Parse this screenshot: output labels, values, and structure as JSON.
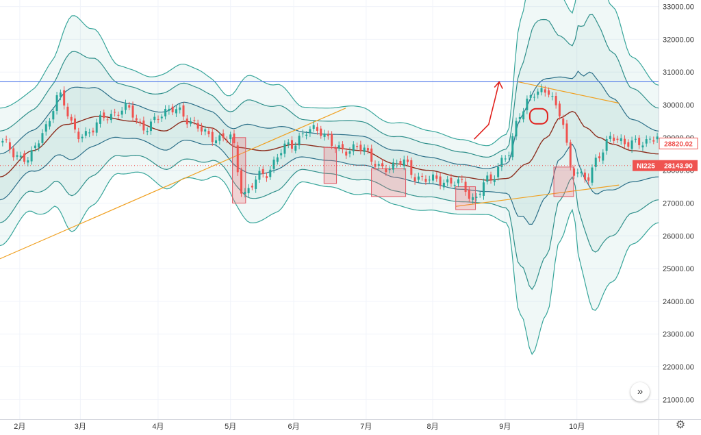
{
  "chart_data": {
    "type": "candlestick",
    "symbol": "NI225",
    "last_price": "28143.90",
    "ma_value": "28820.02",
    "ylim": [
      20400,
      33200
    ],
    "yticks": [
      "33000.00",
      "32000.00",
      "31000.00",
      "30000.00",
      "29000.00",
      "28000.00",
      "27000.00",
      "26000.00",
      "25000.00",
      "24000.00",
      "23000.00",
      "22000.00",
      "21000.00"
    ],
    "ytick_values": [
      33000,
      32000,
      31000,
      30000,
      29000,
      28000,
      27000,
      26000,
      25000,
      24000,
      23000,
      22000,
      21000
    ],
    "months": [
      "2月",
      "3月",
      "4月",
      "5月",
      "6月",
      "7月",
      "8月",
      "9月",
      "10月"
    ],
    "month_pos": [
      0.03,
      0.122,
      0.24,
      0.35,
      0.446,
      0.556,
      0.657,
      0.767,
      0.876
    ],
    "resistance_level": 30715,
    "close_key": [
      [
        0.0,
        28850
      ],
      [
        0.04,
        28300
      ],
      [
        0.07,
        29300
      ],
      [
        0.09,
        30300
      ],
      [
        0.12,
        29000
      ],
      [
        0.16,
        29600
      ],
      [
        0.19,
        29900
      ],
      [
        0.22,
        29300
      ],
      [
        0.26,
        29900
      ],
      [
        0.29,
        29500
      ],
      [
        0.32,
        29000
      ],
      [
        0.35,
        29000
      ],
      [
        0.37,
        27300
      ],
      [
        0.4,
        27900
      ],
      [
        0.44,
        28800
      ],
      [
        0.48,
        29300
      ],
      [
        0.51,
        28700
      ],
      [
        0.53,
        28600
      ],
      [
        0.55,
        28700
      ],
      [
        0.58,
        28000
      ],
      [
        0.61,
        28300
      ],
      [
        0.63,
        27800
      ],
      [
        0.66,
        27700
      ],
      [
        0.7,
        27600
      ],
      [
        0.72,
        27100
      ],
      [
        0.74,
        27700
      ],
      [
        0.77,
        28400
      ],
      [
        0.79,
        29800
      ],
      [
        0.81,
        30300
      ],
      [
        0.83,
        30500
      ],
      [
        0.85,
        29700
      ],
      [
        0.87,
        28000
      ],
      [
        0.89,
        27700
      ],
      [
        0.91,
        28500
      ],
      [
        0.93,
        29000
      ],
      [
        0.96,
        28800
      ],
      [
        1.0,
        29000
      ]
    ],
    "ma_key": [
      [
        0.0,
        27800
      ],
      [
        0.05,
        28600
      ],
      [
        0.1,
        29400
      ],
      [
        0.15,
        29650
      ],
      [
        0.2,
        29500
      ],
      [
        0.25,
        29200
      ],
      [
        0.28,
        29500
      ],
      [
        0.32,
        29300
      ],
      [
        0.36,
        28700
      ],
      [
        0.4,
        28600
      ],
      [
        0.45,
        28800
      ],
      [
        0.5,
        28700
      ],
      [
        0.55,
        28600
      ],
      [
        0.6,
        28200
      ],
      [
        0.65,
        28000
      ],
      [
        0.7,
        27800
      ],
      [
        0.74,
        27700
      ],
      [
        0.77,
        27750
      ],
      [
        0.8,
        28200
      ],
      [
        0.83,
        29000
      ],
      [
        0.85,
        29600
      ],
      [
        0.87,
        29800
      ],
      [
        0.89,
        29300
      ],
      [
        0.91,
        29000
      ],
      [
        0.93,
        28800
      ],
      [
        0.96,
        28600
      ],
      [
        1.0,
        28500
      ]
    ],
    "band_sd_key": [
      [
        0.0,
        700
      ],
      [
        0.04,
        600
      ],
      [
        0.08,
        750
      ],
      [
        0.11,
        1100
      ],
      [
        0.14,
        900
      ],
      [
        0.18,
        550
      ],
      [
        0.22,
        500
      ],
      [
        0.26,
        600
      ],
      [
        0.3,
        560
      ],
      [
        0.34,
        450
      ],
      [
        0.38,
        750
      ],
      [
        0.42,
        650
      ],
      [
        0.46,
        380
      ],
      [
        0.5,
        400
      ],
      [
        0.54,
        450
      ],
      [
        0.58,
        400
      ],
      [
        0.62,
        430
      ],
      [
        0.66,
        400
      ],
      [
        0.7,
        380
      ],
      [
        0.74,
        350
      ],
      [
        0.77,
        450
      ],
      [
        0.79,
        1500
      ],
      [
        0.81,
        2000
      ],
      [
        0.83,
        1800
      ],
      [
        0.85,
        1250
      ],
      [
        0.87,
        1000
      ],
      [
        0.88,
        1450
      ],
      [
        0.9,
        1800
      ],
      [
        0.93,
        1400
      ],
      [
        0.96,
        950
      ],
      [
        1.0,
        700
      ]
    ],
    "highlight_boxes": [
      [
        0.353,
        0.373,
        29000,
        27000
      ],
      [
        0.492,
        0.511,
        28700,
        27600
      ],
      [
        0.564,
        0.616,
        28050,
        27200
      ],
      [
        0.692,
        0.722,
        27500,
        26800
      ],
      [
        0.841,
        0.871,
        28100,
        27200
      ]
    ],
    "trend_lines": [
      [
        [
          0.0,
          25300
        ],
        [
          0.525,
          29900
        ]
      ],
      [
        [
          0.692,
          26900
        ],
        [
          0.94,
          27550
        ]
      ],
      [
        [
          0.787,
          30700
        ],
        [
          0.94,
          30050
        ]
      ]
    ],
    "circle_mark": [
      0.818,
      29650
    ],
    "arrow_mark": [
      [
        0.72,
        28950
      ],
      [
        0.742,
        29400
      ],
      [
        0.752,
        30200
      ],
      [
        0.758,
        30700
      ]
    ]
  },
  "ui": {
    "scroll_icon": "»",
    "settings_icon": "⚙"
  }
}
